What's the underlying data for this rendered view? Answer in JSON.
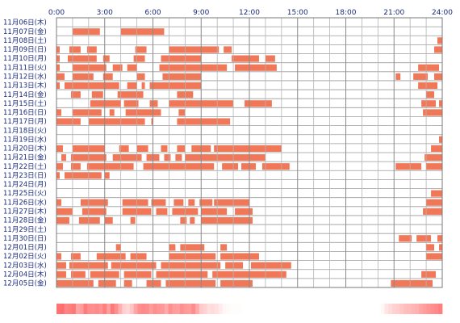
{
  "chart_data": {
    "type": "bar",
    "title": "",
    "xlabel": "",
    "ylabel": "",
    "x_range": [
      0,
      24
    ],
    "x_ticks": [
      "0:00",
      "3:00",
      "6:00",
      "9:00",
      "12:00",
      "15:00",
      "18:00",
      "21:00",
      "24:00"
    ],
    "grid": true,
    "bar_color": "#f07858",
    "heat_color": "#ff5a5a",
    "rows": [
      {
        "label": "11月06日(木)",
        "intervals": []
      },
      {
        "label": "11月07日(金)",
        "intervals": [
          [
            1.0,
            2.7
          ],
          [
            4.0,
            6.7
          ]
        ]
      },
      {
        "label": "11月08日(土)",
        "intervals": [
          [
            23.7,
            24.0
          ]
        ]
      },
      {
        "label": "11月09日(日)",
        "intervals": [
          [
            0.0,
            0.2
          ],
          [
            0.8,
            1.5
          ],
          [
            1.9,
            2.5
          ],
          [
            4.9,
            5.6
          ],
          [
            7.0,
            10.1
          ],
          [
            10.4,
            10.9
          ],
          [
            23.5,
            24.0
          ]
        ]
      },
      {
        "label": "11月10日(月)",
        "intervals": [
          [
            0.0,
            0.2
          ],
          [
            0.7,
            2.5
          ],
          [
            2.9,
            3.3
          ],
          [
            4.8,
            5.5
          ],
          [
            6.5,
            9.0
          ],
          [
            10.9,
            12.6
          ],
          [
            13.0,
            13.6
          ]
        ]
      },
      {
        "label": "11月11日(火)",
        "intervals": [
          [
            0.0,
            0.2
          ],
          [
            1.0,
            3.1
          ],
          [
            3.5,
            4.1
          ],
          [
            4.4,
            5.0
          ],
          [
            6.4,
            10.6
          ],
          [
            11.1,
            13.7
          ],
          [
            22.5,
            23.8
          ]
        ]
      },
      {
        "label": "11月12日(水)",
        "intervals": [
          [
            0.0,
            0.5
          ],
          [
            1.0,
            2.3
          ],
          [
            2.9,
            3.5
          ],
          [
            5.0,
            5.5
          ],
          [
            6.6,
            9.0
          ],
          [
            21.1,
            21.4
          ],
          [
            22.2,
            23.1
          ],
          [
            23.5,
            24.0
          ]
        ]
      },
      {
        "label": "11月13日(木)",
        "intervals": [
          [
            0.0,
            0.2
          ],
          [
            0.5,
            3.9
          ],
          [
            4.4,
            5.0
          ],
          [
            5.3,
            5.5
          ],
          [
            5.8,
            9.0
          ],
          [
            22.5,
            23.7
          ]
        ]
      },
      {
        "label": "11月14日(金)",
        "intervals": [
          [
            0.9,
            1.5
          ],
          [
            2.2,
            2.9
          ],
          [
            3.8,
            5.4
          ],
          [
            7.5,
            8.5
          ],
          [
            23.0,
            23.5
          ]
        ]
      },
      {
        "label": "11月15日(土)",
        "intervals": [
          [
            2.1,
            4.0
          ],
          [
            4.2,
            5.1
          ],
          [
            5.8,
            6.3
          ],
          [
            7.0,
            11.0
          ],
          [
            11.7,
            13.4
          ],
          [
            22.7,
            23.6
          ],
          [
            23.8,
            24.0
          ]
        ]
      },
      {
        "label": "11月16日(日)",
        "intervals": [
          [
            0.0,
            0.3
          ],
          [
            1.0,
            2.8
          ],
          [
            3.3,
            3.6
          ],
          [
            4.3,
            6.5
          ],
          [
            7.6,
            8.0
          ],
          [
            22.8,
            24.0
          ]
        ]
      },
      {
        "label": "11月17日(月)",
        "intervals": [
          [
            0.0,
            1.5
          ],
          [
            2.0,
            5.5
          ],
          [
            5.9,
            6.0
          ],
          [
            7.5,
            10.8
          ]
        ]
      },
      {
        "label": "11月18日(火)",
        "intervals": []
      },
      {
        "label": "11月19日(水)",
        "intervals": [
          [
            23.8,
            24.0
          ]
        ]
      },
      {
        "label": "11月20日(木)",
        "intervals": [
          [
            0.0,
            0.4
          ],
          [
            1.0,
            3.0
          ],
          [
            3.9,
            4.5
          ],
          [
            5.0,
            5.7
          ],
          [
            6.5,
            6.9
          ],
          [
            7.5,
            8.0
          ],
          [
            8.4,
            9.6
          ],
          [
            9.8,
            14.0
          ],
          [
            23.3,
            24.0
          ]
        ]
      },
      {
        "label": "11月21日(金)",
        "intervals": [
          [
            0.3,
            0.6
          ],
          [
            0.9,
            3.1
          ],
          [
            3.5,
            5.3
          ],
          [
            5.6,
            6.4
          ],
          [
            6.7,
            7.1
          ],
          [
            7.4,
            7.8
          ],
          [
            8.0,
            13.0
          ],
          [
            22.9,
            24.0
          ]
        ]
      },
      {
        "label": "11月22日(土)",
        "intervals": [
          [
            0.0,
            0.4
          ],
          [
            0.9,
            1.5
          ],
          [
            1.9,
            4.8
          ],
          [
            5.4,
            9.8
          ],
          [
            10.3,
            11.3
          ],
          [
            11.5,
            12.4
          ],
          [
            12.8,
            14.5
          ],
          [
            21.1,
            22.7
          ],
          [
            23.0,
            24.0
          ]
        ]
      },
      {
        "label": "11月23日(日)",
        "intervals": [
          [
            0.0,
            0.2
          ],
          [
            0.5,
            2.8
          ],
          [
            3.0,
            3.3
          ]
        ]
      },
      {
        "label": "11月24日(月)",
        "intervals": []
      },
      {
        "label": "11月25日(火)",
        "intervals": [
          [
            23.3,
            24.0
          ]
        ]
      },
      {
        "label": "11月26日(水)",
        "intervals": [
          [
            0.0,
            0.3
          ],
          [
            1.5,
            3.2
          ],
          [
            4.1,
            5.7
          ],
          [
            5.9,
            6.8
          ],
          [
            7.3,
            7.9
          ],
          [
            8.2,
            8.6
          ],
          [
            8.9,
            9.7
          ],
          [
            9.8,
            12.0
          ],
          [
            23.0,
            24.0
          ]
        ]
      },
      {
        "label": "11月27日(木)",
        "intervals": [
          [
            0.0,
            1.0
          ],
          [
            1.6,
            3.1
          ],
          [
            4.1,
            5.9
          ],
          [
            6.2,
            6.9
          ],
          [
            7.2,
            8.8
          ],
          [
            9.0,
            10.6
          ],
          [
            11.1,
            12.2
          ],
          [
            22.8,
            24.0
          ]
        ]
      },
      {
        "label": "11月28日(金)",
        "intervals": [
          [
            0.0,
            0.8
          ],
          [
            1.4,
            2.7
          ],
          [
            3.0,
            3.5
          ],
          [
            4.6,
            4.9
          ],
          [
            7.7,
            8.1
          ],
          [
            8.3,
            8.6
          ],
          [
            9.0,
            12.2
          ]
        ]
      },
      {
        "label": "11月29日(土)",
        "intervals": []
      },
      {
        "label": "11月30日(日)",
        "intervals": [
          [
            21.3,
            22.1
          ],
          [
            22.4,
            23.3
          ],
          [
            23.7,
            24.0
          ]
        ]
      },
      {
        "label": "12月01日(月)",
        "intervals": [
          [
            3.7,
            4.0
          ],
          [
            7.0,
            7.4
          ],
          [
            7.7,
            9.2
          ],
          [
            10.2,
            10.6
          ],
          [
            23.0,
            23.5
          ],
          [
            23.8,
            24.0
          ]
        ]
      },
      {
        "label": "12月02日(火)",
        "intervals": [
          [
            0.0,
            0.3
          ],
          [
            0.9,
            1.5
          ],
          [
            2.5,
            4.3
          ],
          [
            4.6,
            5.6
          ],
          [
            7.0,
            9.9
          ],
          [
            10.2,
            12.6
          ],
          [
            23.0,
            24.0
          ]
        ]
      },
      {
        "label": "12月03日(水)",
        "intervals": [
          [
            0.0,
            0.6
          ],
          [
            0.8,
            3.2
          ],
          [
            3.4,
            6.2
          ],
          [
            6.5,
            10.2
          ],
          [
            10.5,
            11.6
          ],
          [
            12.1,
            14.6
          ],
          [
            24.0,
            24.0
          ]
        ]
      },
      {
        "label": "12月04日(木)",
        "intervals": [
          [
            0.0,
            0.6
          ],
          [
            0.9,
            1.8
          ],
          [
            2.1,
            3.9
          ],
          [
            4.2,
            5.9
          ],
          [
            6.2,
            9.4
          ],
          [
            9.7,
            14.3
          ],
          [
            22.7,
            23.6
          ]
        ]
      },
      {
        "label": "12月05日(金)",
        "intervals": [
          [
            0.0,
            2.3
          ],
          [
            2.6,
            3.7
          ],
          [
            4.2,
            4.7
          ],
          [
            5.6,
            6.5
          ],
          [
            6.8,
            9.9
          ],
          [
            10.2,
            12.2
          ],
          [
            20.8,
            23.4
          ]
        ]
      }
    ],
    "heat_profile": [
      0.85,
      0.88,
      0.75,
      0.78,
      0.82,
      0.55,
      0.6,
      0.8,
      0.7,
      0.68,
      0.72,
      0.66,
      0.78,
      0.58,
      0.82,
      0.68,
      0.48,
      0.3,
      0.25,
      0.35,
      0.55,
      0.68,
      0.72,
      0.7,
      0.6,
      0.68,
      0.64,
      0.62,
      0.52,
      0.68,
      0.6,
      0.58,
      0.68,
      0.62,
      0.6,
      0.7,
      0.52,
      0.32,
      0.28,
      0.2,
      0.22,
      0.18,
      0.12,
      0.05,
      0.03,
      0.02,
      0.02,
      0.02,
      0.0,
      0.0,
      0.0,
      0.0,
      0.0,
      0.0,
      0.0,
      0.0,
      0.0,
      0.0,
      0.0,
      0.0,
      0.0,
      0.0,
      0.0,
      0.0,
      0.0,
      0.0,
      0.0,
      0.0,
      0.0,
      0.0,
      0.0,
      0.0,
      0.0,
      0.0,
      0.0,
      0.0,
      0.0,
      0.0,
      0.0,
      0.0,
      0.0,
      0.0,
      0.0,
      0.0,
      0.05,
      0.15,
      0.22,
      0.28,
      0.3,
      0.35,
      0.4,
      0.42,
      0.45,
      0.48,
      0.55,
      0.6,
      0.65,
      0.68,
      0.72,
      0.78
    ]
  }
}
